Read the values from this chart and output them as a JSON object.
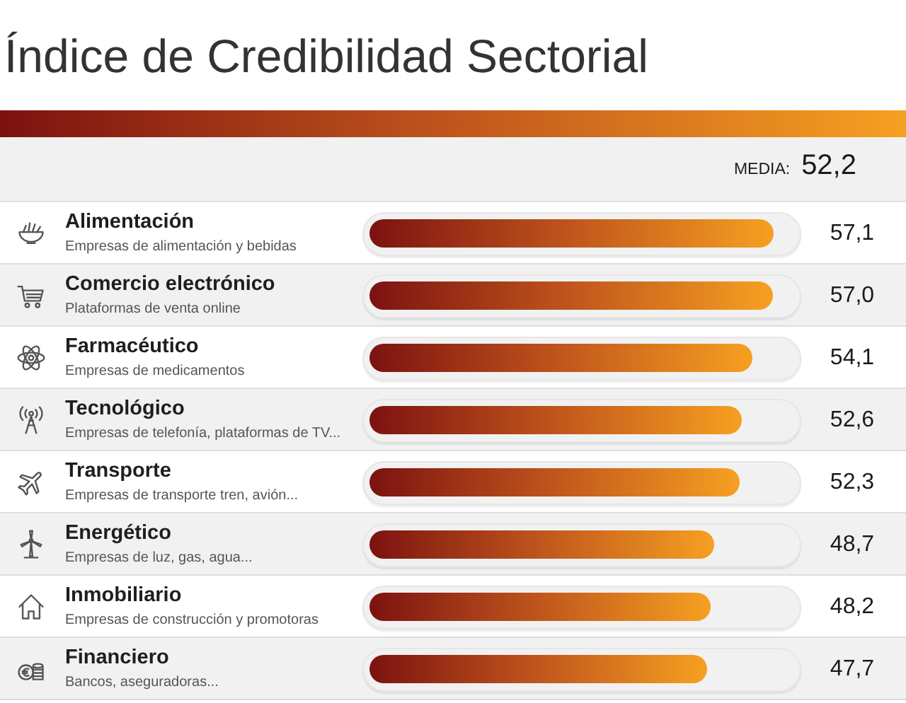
{
  "chart_data": {
    "type": "bar",
    "orientation": "horizontal",
    "title": "Índice de Credibilidad Sectorial",
    "annotations": [
      "MEDIA: 52,2"
    ],
    "categories": [
      "Alimentación\nEmpresas de alimentación y bebidas",
      "Comercio electrónico\nPlataformas de venta online",
      "Farmacéutico\nEmpresas de medicamentos",
      "Tecnológico\nEmpresas de telefonía, plataformas de TV...",
      "Transporte\nEmpresas de transporte tren, avión...",
      "Energético\nEmpresas de luz, gas, agua...",
      "Inmobiliario\nEmpresas de construcción y promotoras",
      "Financiero\nBancos, aseguradoras..."
    ],
    "values": [
      57.1,
      57.0,
      54.1,
      52.6,
      52.3,
      48.7,
      48.2,
      47.7
    ],
    "value_labels": [
      "57,1",
      "57,0",
      "54,1",
      "52,6",
      "52,3",
      "48,7",
      "48,2",
      "47,7"
    ],
    "color": "#c0561c",
    "tick_labels": "y"
  }
}
